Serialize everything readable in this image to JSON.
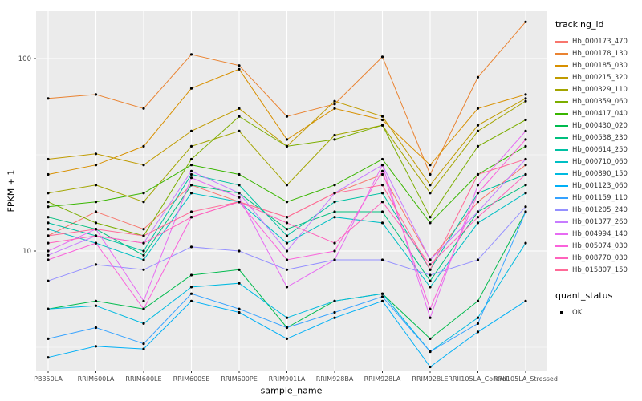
{
  "chart": {
    "y_axis_title": "FPKM + 1",
    "x_axis_title": "sample_name"
  },
  "legend": {
    "tracking_title": "tracking_id",
    "quant_title": "quant_status",
    "quant_items": [
      {
        "label": "OK"
      }
    ]
  },
  "chart_data": {
    "type": "line",
    "title": "",
    "xlabel": "sample_name",
    "ylabel": "FPKM + 1",
    "y_scale": "log10",
    "ylim": [
      2.5,
      170
    ],
    "yticks": [
      10,
      100
    ],
    "y_minor_gridlines": [
      3.162,
      31.62
    ],
    "grid": true,
    "plot_bg": "#EBEBEB",
    "point_color": "#000000",
    "legend_position": "right",
    "categories": [
      "PB350LA",
      "RRIM600LA",
      "RRIM600LE",
      "RRIM600SE",
      "RRIM600PE",
      "RRIM901LA",
      "RRIM928BA",
      "RRIM928LA",
      "RRIM928LE",
      "RRII105LA_Control",
      "RRII105LA_Stressed"
    ],
    "series": [
      {
        "name": "Hb_000173_470",
        "color": "#F8766D",
        "values": [
          12,
          16,
          13,
          22,
          18,
          15,
          20,
          25,
          9,
          18,
          28
        ]
      },
      {
        "name": "Hb_000178_130",
        "color": "#EA8331",
        "values": [
          62,
          65,
          55,
          105,
          92,
          50,
          58,
          102,
          25,
          80,
          155
        ]
      },
      {
        "name": "Hb_000185_030",
        "color": "#D89000",
        "values": [
          25,
          28,
          35,
          70,
          88,
          38,
          55,
          48,
          28,
          55,
          65
        ]
      },
      {
        "name": "Hb_000215_320",
        "color": "#C09B00",
        "values": [
          30,
          32,
          28,
          42,
          55,
          35,
          60,
          50,
          22,
          45,
          62
        ]
      },
      {
        "name": "Hb_000329_110",
        "color": "#A3A500",
        "values": [
          20,
          22,
          18,
          35,
          42,
          22,
          40,
          45,
          20,
          42,
          60
        ]
      },
      {
        "name": "Hb_000359_060",
        "color": "#7CAE00",
        "values": [
          18,
          14,
          12,
          30,
          50,
          35,
          38,
          45,
          15,
          35,
          48
        ]
      },
      {
        "name": "Hb_000417_040",
        "color": "#39B600",
        "values": [
          17,
          18,
          20,
          28,
          25,
          18,
          22,
          30,
          14,
          25,
          35
        ]
      },
      {
        "name": "Hb_000430_020",
        "color": "#00BB4E",
        "values": [
          5,
          5.5,
          5,
          7.5,
          8,
          4,
          5.5,
          6,
          3.5,
          5.5,
          16
        ]
      },
      {
        "name": "Hb_000538_230",
        "color": "#00BF7D",
        "values": [
          15,
          13,
          9.5,
          22,
          20,
          13,
          16,
          16,
          7,
          16,
          22
        ]
      },
      {
        "name": "Hb_000614_250",
        "color": "#00C1A3",
        "values": [
          14,
          12,
          10,
          25,
          22,
          12,
          18,
          20,
          8,
          20,
          25
        ]
      },
      {
        "name": "Hb_000710_060",
        "color": "#00BFC4",
        "values": [
          13,
          11,
          9,
          20,
          18,
          11,
          15,
          14,
          6.5,
          14,
          20
        ]
      },
      {
        "name": "Hb_000890_150",
        "color": "#00BAE0",
        "values": [
          5,
          5.2,
          4.2,
          6.5,
          6.8,
          4.5,
          5.5,
          6,
          3,
          4.5,
          11
        ]
      },
      {
        "name": "Hb_001123_060",
        "color": "#00B0F6",
        "values": [
          2.8,
          3.2,
          3.1,
          5.5,
          4.8,
          3.5,
          4.5,
          5.5,
          2.5,
          3.8,
          5.5
        ]
      },
      {
        "name": "Hb_001159_110",
        "color": "#35A2FF",
        "values": [
          3.5,
          4,
          3.3,
          6,
          5,
          4,
          4.8,
          5.8,
          3,
          4.2,
          16
        ]
      },
      {
        "name": "Hb_001205_240",
        "color": "#9590FF",
        "values": [
          7,
          8.5,
          8,
          10.5,
          10,
          8,
          9,
          9,
          7.5,
          9,
          17
        ]
      },
      {
        "name": "Hb_001377_260",
        "color": "#C77CFF",
        "values": [
          9.5,
          12,
          11,
          26,
          20,
          10,
          20,
          28,
          9,
          16,
          30
        ]
      },
      {
        "name": "Hb_004994_140",
        "color": "#E76BF3",
        "values": [
          10,
          13,
          5.5,
          24,
          19,
          6.5,
          9,
          28,
          4.5,
          22,
          42
        ]
      },
      {
        "name": "Hb_005074_030",
        "color": "#FA62DB",
        "values": [
          9,
          11,
          5,
          15,
          18,
          9,
          10,
          26,
          5,
          20,
          38
        ]
      },
      {
        "name": "Hb_008770_030",
        "color": "#FF62BC",
        "values": [
          11,
          12,
          11,
          15,
          18,
          14,
          11,
          18,
          8.5,
          15,
          25
        ]
      },
      {
        "name": "Hb_015807_150",
        "color": "#FF6A98",
        "values": [
          12,
          13,
          12,
          16,
          18,
          15,
          20,
          22,
          8,
          25,
          30
        ]
      }
    ]
  }
}
